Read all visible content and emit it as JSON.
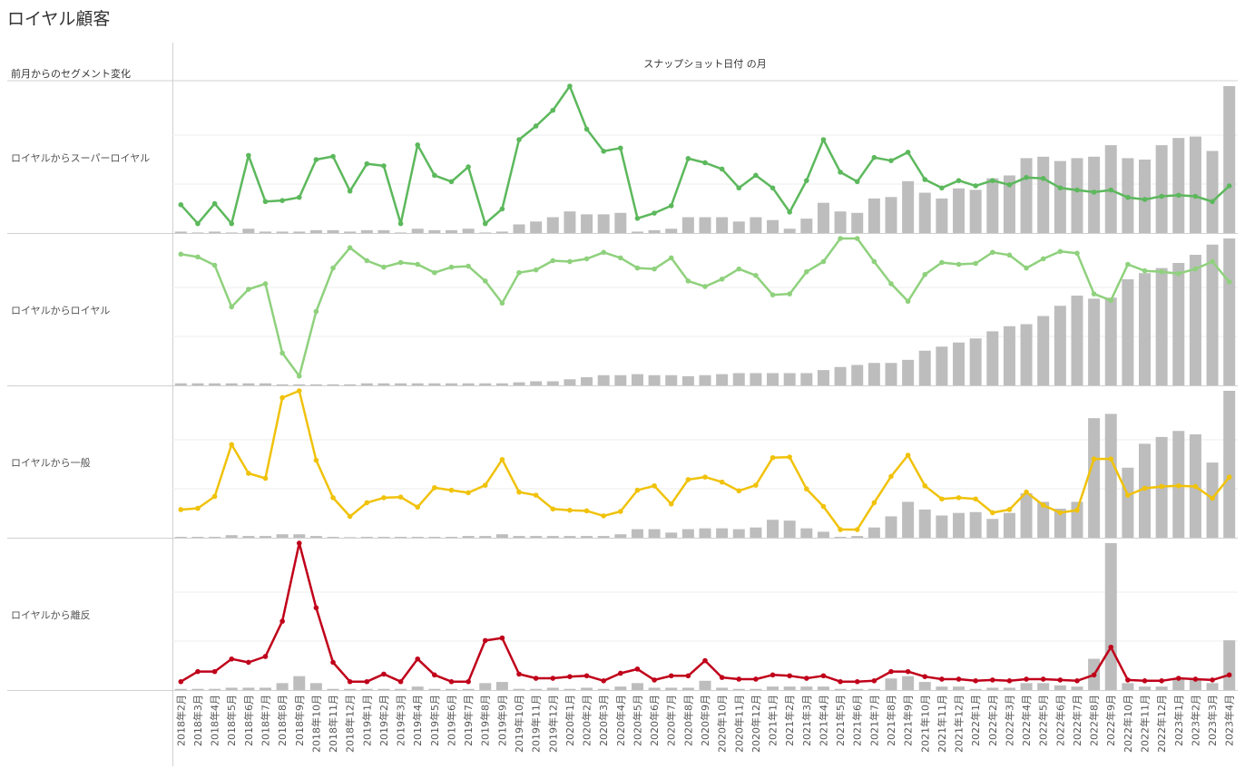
{
  "title": "ロイヤル顧客",
  "row_header": "前月からのセグメント変化",
  "column_header": "スナップショット日付 の月",
  "colors": {
    "bar": "#bdbdbd",
    "grid": "#ececec",
    "divider": "#d0d0d0"
  },
  "chart_data": {
    "type": "combo-bar-line",
    "categories": [
      "2018年2月",
      "2018年3月",
      "2018年4月",
      "2018年5月",
      "2018年6月",
      "2018年7月",
      "2018年8月",
      "2018年9月",
      "2018年10月",
      "2018年11月",
      "2018年12月",
      "2019年1月",
      "2019年2月",
      "2019年3月",
      "2019年4月",
      "2019年5月",
      "2019年6月",
      "2019年7月",
      "2019年8月",
      "2019年9月",
      "2019年10月",
      "2019年11月",
      "2019年12月",
      "2020年1月",
      "2020年2月",
      "2020年3月",
      "2020年4月",
      "2020年5月",
      "2020年6月",
      "2020年7月",
      "2020年8月",
      "2020年9月",
      "2020年10月",
      "2020年11月",
      "2020年12月",
      "2021年1月",
      "2021年2月",
      "2021年3月",
      "2021年4月",
      "2021年5月",
      "2021年6月",
      "2021年7月",
      "2021年8月",
      "2021年9月",
      "2021年10月",
      "2021年11月",
      "2021年12月",
      "2022年1月",
      "2022年2月",
      "2022年3月",
      "2022年4月",
      "2022年5月",
      "2022年6月",
      "2022年7月",
      "2022年8月",
      "2022年9月",
      "2022年10月",
      "2022年11月",
      "2022年12月",
      "2023年1月",
      "2023年2月",
      "2023年3月",
      "2023年4月"
    ],
    "panels": [
      {
        "name": "ロイヤルからスーパーロイヤル",
        "line_color": "#5cb85c",
        "bar_values": [
          1,
          0,
          1,
          0,
          3,
          1,
          1,
          1,
          2,
          2,
          1,
          2,
          2,
          0,
          3,
          2,
          2,
          3,
          0,
          1,
          6,
          8,
          11,
          15,
          13,
          13,
          14,
          1,
          2,
          3,
          11,
          11,
          11,
          8,
          11,
          9,
          3,
          10,
          21,
          15,
          14,
          24,
          25,
          36,
          28,
          24,
          31,
          30,
          38,
          40,
          52,
          53,
          50,
          52,
          53,
          61,
          52,
          51,
          61,
          66,
          67,
          57,
          102
        ],
        "line_values": [
          27,
          9,
          28,
          9,
          74,
          30,
          31,
          34,
          70,
          73,
          40,
          66,
          64,
          9,
          84,
          55,
          49,
          63,
          9,
          23,
          89,
          102,
          117,
          140,
          99,
          78,
          81,
          14,
          19,
          26,
          71,
          67,
          61,
          43,
          55,
          43,
          20,
          50,
          89,
          58,
          49,
          72,
          69,
          77,
          51,
          43,
          50,
          45,
          50,
          46,
          53,
          52,
          43,
          41,
          39,
          41,
          34,
          32,
          35,
          36,
          35,
          30,
          45
        ]
      },
      {
        "name": "ロイヤルからロイヤル",
        "line_color": "#8fd17d",
        "bar_values": [
          2,
          2,
          2,
          2,
          2,
          2,
          1,
          1,
          1,
          1,
          1,
          2,
          2,
          2,
          2,
          2,
          2,
          2,
          2,
          2,
          3,
          4,
          4,
          6,
          8,
          10,
          10,
          11,
          10,
          10,
          9,
          10,
          11,
          12,
          12,
          12,
          12,
          12,
          15,
          18,
          20,
          22,
          22,
          25,
          34,
          38,
          42,
          46,
          53,
          58,
          60,
          68,
          78,
          88,
          85,
          86,
          104,
          110,
          115,
          120,
          128,
          138,
          144
        ],
        "line_values": [
          142,
          139,
          130,
          85,
          104,
          110,
          35,
          10,
          80,
          127,
          149,
          135,
          128,
          133,
          131,
          122,
          128,
          129,
          113,
          89,
          122,
          125,
          135,
          134,
          137,
          144,
          138,
          127,
          126,
          138,
          113,
          107,
          115,
          126,
          119,
          98,
          99,
          123,
          134,
          159,
          159,
          134,
          110,
          91,
          120,
          133,
          131,
          132,
          144,
          141,
          127,
          137,
          145,
          143,
          99,
          92,
          131,
          124,
          123,
          121,
          126,
          134,
          112
        ]
      },
      {
        "name": "ロイヤルから一般",
        "line_color": "#f0c20a",
        "bar_values": [
          1,
          1,
          1,
          3,
          2,
          2,
          4,
          4,
          2,
          1,
          0,
          1,
          1,
          1,
          1,
          1,
          1,
          2,
          2,
          4,
          2,
          2,
          2,
          2,
          2,
          2,
          4,
          10,
          10,
          6,
          10,
          11,
          11,
          10,
          12,
          21,
          20,
          11,
          7,
          1,
          2,
          12,
          25,
          42,
          33,
          26,
          29,
          30,
          22,
          29,
          52,
          42,
          34,
          42,
          140,
          145,
          82,
          110,
          118,
          125,
          121,
          88,
          172
        ],
        "line_values": [
          45,
          47,
          66,
          149,
          103,
          95,
          224,
          235,
          124,
          64,
          34,
          56,
          64,
          65,
          49,
          80,
          76,
          72,
          84,
          125,
          73,
          68,
          46,
          44,
          43,
          35,
          42,
          76,
          83,
          54,
          93,
          97,
          89,
          75,
          84,
          128,
          129,
          78,
          50,
          13,
          13,
          56,
          98,
          132,
          83,
          62,
          64,
          62,
          40,
          45,
          73,
          52,
          40,
          44,
          126,
          126,
          68,
          79,
          82,
          83,
          82,
          63,
          97
        ]
      },
      {
        "name": "ロイヤルから離反",
        "line_color": "#c0001a",
        "bar_values": [
          1,
          1,
          1,
          2,
          2,
          2,
          6,
          12,
          6,
          1,
          1,
          1,
          1,
          1,
          3,
          1,
          1,
          1,
          6,
          7,
          1,
          1,
          2,
          1,
          2,
          1,
          3,
          6,
          2,
          2,
          2,
          8,
          2,
          1,
          1,
          3,
          3,
          3,
          3,
          1,
          1,
          1,
          10,
          12,
          7,
          3,
          3,
          1,
          2,
          2,
          6,
          6,
          4,
          3,
          27,
          127,
          6,
          3,
          3,
          10,
          10,
          6,
          43
        ],
        "line_values": [
          10,
          22,
          22,
          37,
          33,
          40,
          82,
          175,
          98,
          33,
          10,
          10,
          19,
          10,
          37,
          18,
          10,
          10,
          59,
          62,
          19,
          14,
          14,
          16,
          17,
          11,
          20,
          25,
          12,
          17,
          17,
          35,
          15,
          13,
          13,
          18,
          17,
          14,
          17,
          10,
          10,
          11,
          22,
          22,
          16,
          13,
          13,
          11,
          12,
          11,
          13,
          13,
          12,
          11,
          18,
          51,
          12,
          11,
          11,
          14,
          13,
          12,
          18
        ]
      }
    ]
  }
}
